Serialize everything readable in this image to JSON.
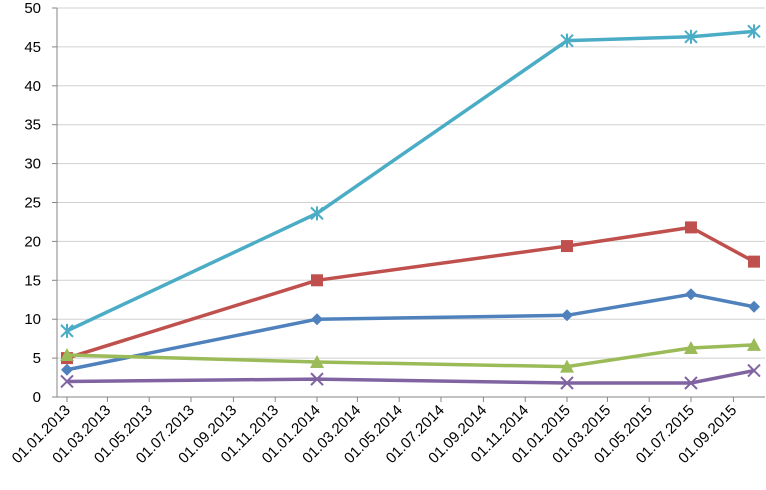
{
  "chart_data": {
    "type": "line",
    "x": [
      "01.01.2013",
      "01.01.2014",
      "01.01.2015",
      "01.07.2015",
      "01.10.2015"
    ],
    "xticks": [
      "01.01.2013",
      "01.03.2013",
      "01.05.2013",
      "01.07.2013",
      "01.09.2013",
      "01.11.2013",
      "01.01.2014",
      "01.03.2014",
      "01.05.2014",
      "01.07.2014",
      "01.09.2014",
      "01.11.2014",
      "01.01.2015",
      "01.03.2015",
      "01.05.2015",
      "01.07.2015",
      "01.09.2015"
    ],
    "ylim": [
      0,
      50
    ],
    "yticks": [
      0,
      5,
      10,
      15,
      20,
      25,
      30,
      35,
      40,
      45,
      50
    ],
    "grid": true,
    "series": [
      {
        "color": "#4f81bd",
        "marker": "diamond",
        "values": [
          3.5,
          10,
          10.5,
          13.2,
          11.6
        ]
      },
      {
        "color": "#c0504d",
        "marker": "square",
        "values": [
          5,
          15,
          19.4,
          21.8,
          17.4
        ]
      },
      {
        "color": "#9bbb59",
        "marker": "triangle",
        "values": [
          5.4,
          4.5,
          3.9,
          6.3,
          6.7
        ]
      },
      {
        "color": "#8064a2",
        "marker": "x",
        "values": [
          2,
          2.3,
          1.8,
          1.8,
          3.4
        ]
      },
      {
        "color": "#4bacc6",
        "marker": "asterisk",
        "values": [
          8.5,
          23.6,
          45.8,
          46.3,
          47
        ]
      }
    ]
  }
}
